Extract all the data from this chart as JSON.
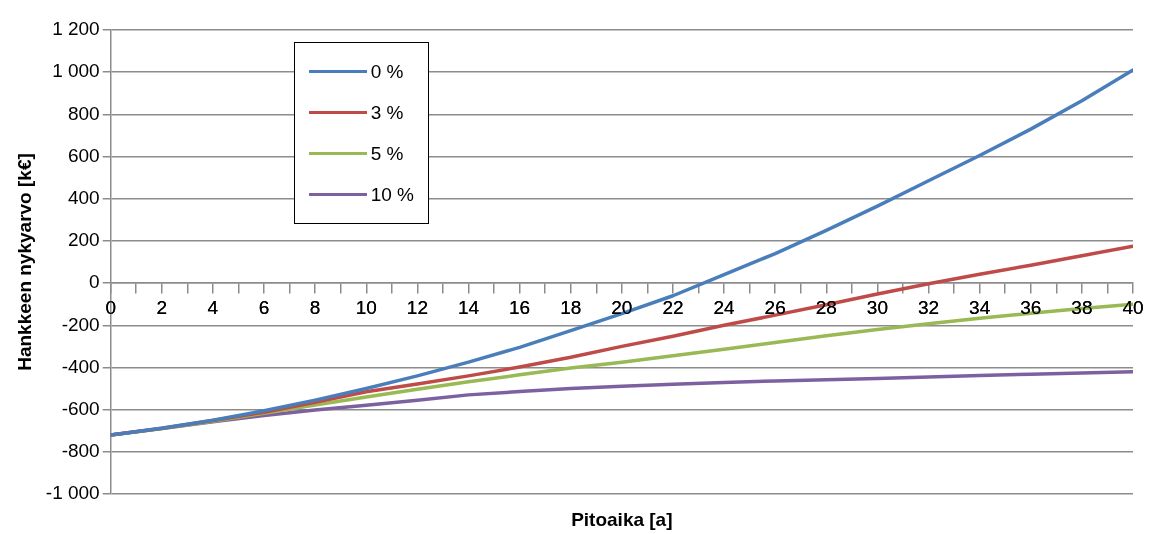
{
  "chart_data": {
    "type": "line",
    "xlabel": "Pitoaika [a]",
    "ylabel": "Hankkeen nykyarvo [k€]",
    "x": [
      0,
      2,
      4,
      6,
      8,
      10,
      12,
      14,
      16,
      18,
      20,
      22,
      24,
      26,
      28,
      30,
      32,
      34,
      36,
      38,
      40
    ],
    "series": [
      {
        "name": "0 %",
        "color": "#4a7ebb",
        "values": [
          -720,
          -688,
          -650,
          -605,
          -555,
          -500,
          -440,
          -375,
          -305,
          -225,
          -145,
          -60,
          40,
          140,
          250,
          365,
          485,
          605,
          730,
          865,
          1010
        ]
      },
      {
        "name": "3 %",
        "color": "#be4b48",
        "values": [
          -720,
          -688,
          -652,
          -612,
          -565,
          -515,
          -478,
          -440,
          -398,
          -352,
          -300,
          -252,
          -200,
          -152,
          -103,
          -52,
          -3,
          42,
          85,
          130,
          175
        ]
      },
      {
        "name": "5 %",
        "color": "#98b954",
        "values": [
          -720,
          -690,
          -655,
          -617,
          -578,
          -540,
          -503,
          -468,
          -435,
          -403,
          -375,
          -345,
          -314,
          -282,
          -250,
          -220,
          -193,
          -167,
          -143,
          -120,
          -100
        ]
      },
      {
        "name": "10 %",
        "color": "#7d60a0",
        "values": [
          -720,
          -690,
          -658,
          -628,
          -602,
          -579,
          -556,
          -530,
          -514,
          -500,
          -489,
          -480,
          -471,
          -464,
          -458,
          -452,
          -445,
          -438,
          -432,
          -426,
          -420
        ]
      }
    ],
    "xlim": [
      0,
      40
    ],
    "xticks": [
      0,
      {
        "value": 1,
        "label": null
      },
      2,
      {
        "value": 3,
        "label": null
      },
      4,
      {
        "value": 5,
        "label": null
      },
      6,
      {
        "value": 7,
        "label": null
      },
      8,
      {
        "value": 9,
        "label": null
      },
      10,
      {
        "value": 11,
        "label": null
      },
      12,
      {
        "value": 13,
        "label": null
      },
      14,
      {
        "value": 15,
        "label": null
      },
      16,
      {
        "value": 17,
        "label": null
      },
      18,
      {
        "value": 19,
        "label": null
      },
      20,
      {
        "value": 21,
        "label": null
      },
      22,
      {
        "value": 23,
        "label": null
      },
      24,
      {
        "value": 25,
        "label": null
      },
      26,
      {
        "value": 27,
        "label": null
      },
      28,
      {
        "value": 29,
        "label": null
      },
      30,
      {
        "value": 31,
        "label": null
      },
      32,
      {
        "value": 33,
        "label": null
      },
      34,
      {
        "value": 35,
        "label": null
      },
      36,
      {
        "value": 37,
        "label": null
      },
      38,
      {
        "value": 39,
        "label": null
      },
      40
    ],
    "ylim": [
      -1000,
      1200
    ],
    "yticks": [
      {
        "value": -1000,
        "label": "-1 000"
      },
      -800,
      -600,
      -400,
      -200,
      0,
      200,
      400,
      600,
      800,
      {
        "value": 1000,
        "label": "1 000"
      },
      {
        "value": 1200,
        "label": "1 200"
      }
    ],
    "grid": "y",
    "legend": "top left",
    "marker": "none",
    "line_style": "solid"
  }
}
